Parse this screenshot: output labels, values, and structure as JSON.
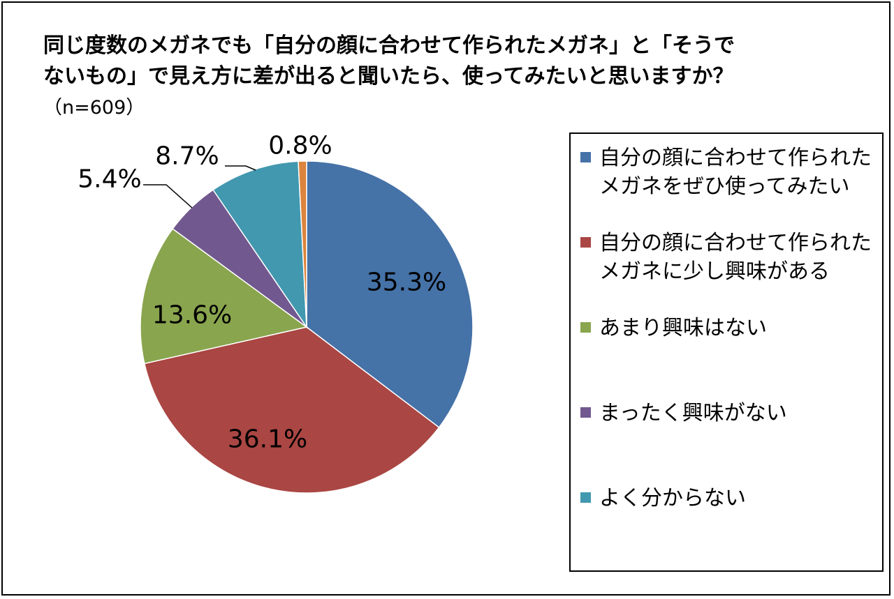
{
  "title": {
    "main": "同じ度数のメガネでも「自分の顔に合わせて作られたメガネ」と「そうでないもの」で見え方に差が出ると聞いたら、使ってみたいと思いますか？",
    "sample": "（n=609）"
  },
  "chart_data": {
    "type": "pie",
    "title": "同じ度数のメガネでも「自分の顔に合わせて作られたメガネ」と「そうでないもの」で見え方に差が出ると聞いたら、使ってみたいと思いますか？（n=609）",
    "unit": "%",
    "slices": [
      {
        "label": "自分の顔に合わせて作られたメガネをぜひ使ってみたい",
        "value": 35.3,
        "value_label": "35.3%",
        "color": "#4572A7"
      },
      {
        "label": "自分の顔に合わせて作られたメガネに少し興味がある",
        "value": 36.1,
        "value_label": "36.1%",
        "color": "#AA4643"
      },
      {
        "label": "あまり興味はない",
        "value": 13.6,
        "value_label": "13.6%",
        "color": "#89A54E"
      },
      {
        "label": "まったく興味がない",
        "value": 5.4,
        "value_label": "5.4%",
        "color": "#71588F"
      },
      {
        "label": "よく分からない",
        "value": 8.7,
        "value_label": "8.7%",
        "color": "#4198AF"
      },
      {
        "label": "",
        "value": 0.8,
        "value_label": "0.8%",
        "color": "#DB843D"
      }
    ],
    "legend_position": "right"
  }
}
